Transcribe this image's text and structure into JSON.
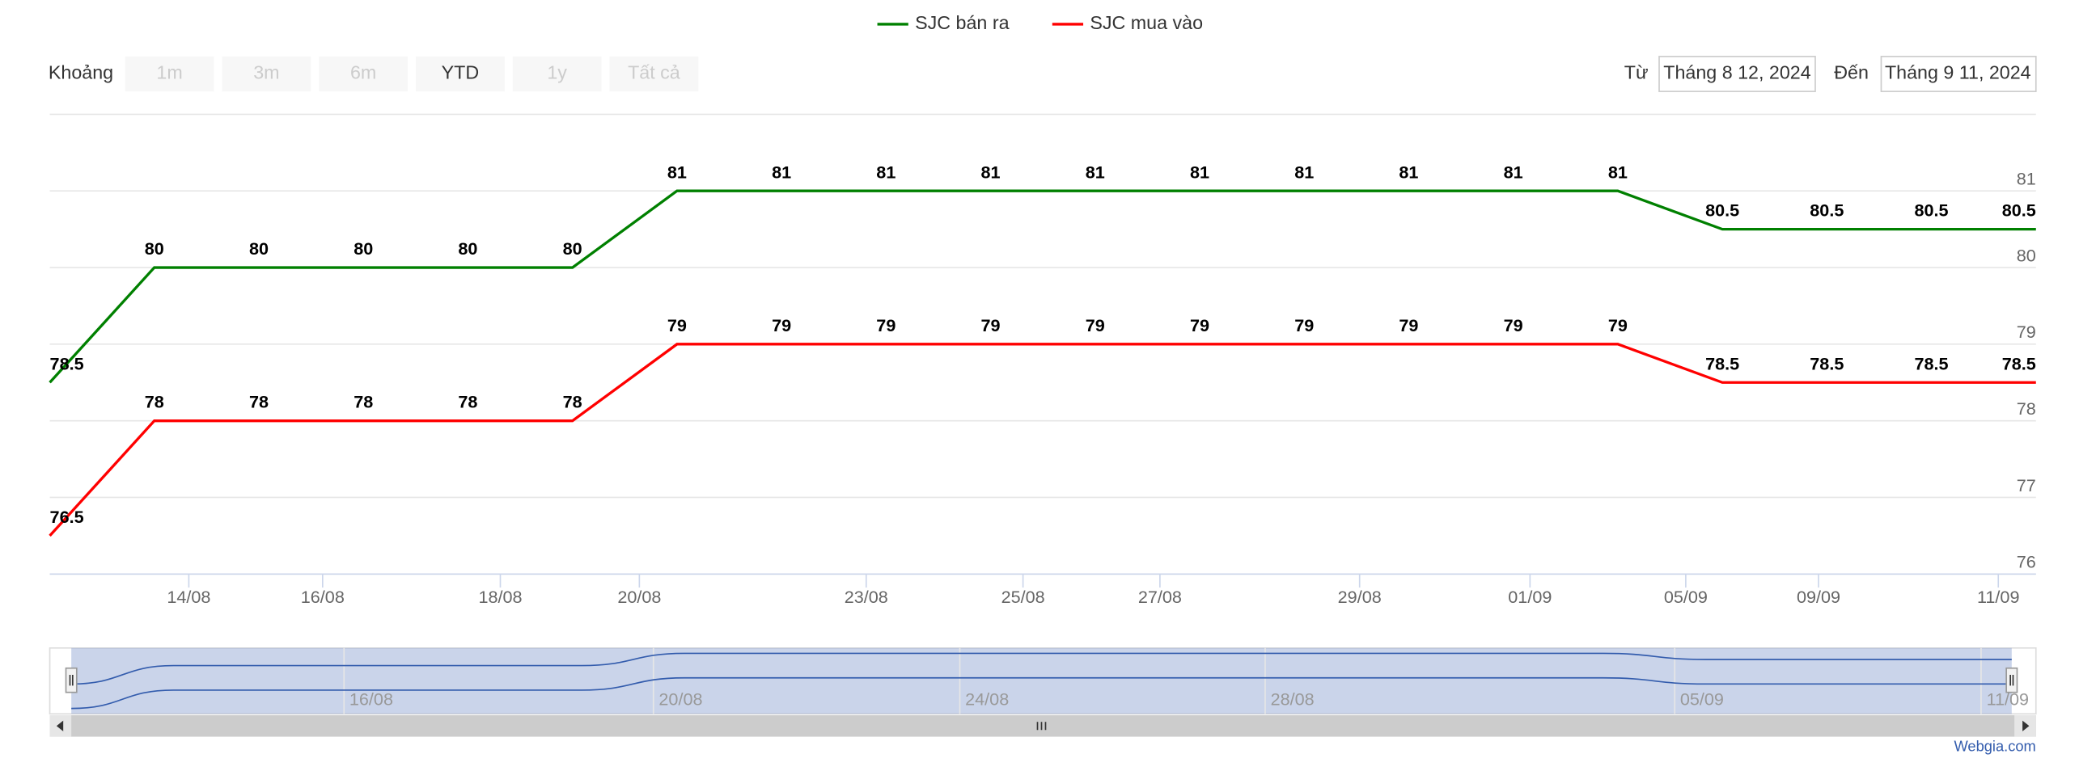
{
  "chart_data": {
    "type": "line",
    "legend_position": "top",
    "categories": [
      null,
      null,
      null,
      null,
      null,
      null,
      null,
      null,
      null,
      null,
      null,
      null,
      null,
      null,
      null,
      null,
      null,
      null,
      null,
      null
    ],
    "series": [
      {
        "name": "SJC bán ra",
        "color": "#008000",
        "values": [
          78.5,
          80,
          80,
          80,
          80,
          80,
          81,
          81,
          81,
          81,
          81,
          81,
          81,
          81,
          81,
          81,
          80.5,
          80.5,
          80.5,
          80.5
        ]
      },
      {
        "name": "SJC mua vào",
        "color": "#ff0000",
        "values": [
          76.5,
          78,
          78,
          78,
          78,
          78,
          79,
          79,
          79,
          79,
          79,
          79,
          79,
          79,
          79,
          79,
          78.5,
          78.5,
          78.5,
          78.5
        ]
      }
    ],
    "xlim": [
      0,
      19
    ],
    "xticks": [
      {
        "value": 1.33,
        "label": "14/08"
      },
      {
        "value": 2.61,
        "label": "16/08"
      },
      {
        "value": 4.31,
        "label": "18/08"
      },
      {
        "value": 5.64,
        "label": "20/08"
      },
      {
        "value": 7.81,
        "label": "23/08"
      },
      {
        "value": 9.31,
        "label": "25/08"
      },
      {
        "value": 10.62,
        "label": "27/08"
      },
      {
        "value": 12.53,
        "label": "29/08"
      },
      {
        "value": 14.16,
        "label": "01/09"
      },
      {
        "value": 15.65,
        "label": "05/09"
      },
      {
        "value": 16.92,
        "label": "09/09"
      },
      {
        "value": 18.64,
        "label": "11/09"
      }
    ],
    "ylim": [
      76,
      82
    ],
    "yticks": [
      76,
      77,
      78,
      79,
      80,
      81
    ],
    "grid": true,
    "navigator_xticks": [
      {
        "value": 2.67,
        "label": "16/08"
      },
      {
        "value": 5.7,
        "label": "20/08"
      },
      {
        "value": 8.7,
        "label": "24/08"
      },
      {
        "value": 11.69,
        "label": "28/08"
      },
      {
        "value": 15.7,
        "label": "05/09"
      },
      {
        "value": 18.7,
        "label": "11/09"
      }
    ]
  },
  "range_selector": {
    "label": "Khoảng",
    "buttons": [
      "1m",
      "3m",
      "6m",
      "YTD",
      "1y",
      "Tất cả"
    ],
    "selected": 3,
    "from_label": "Từ",
    "from": "Tháng 8 12, 2024",
    "to_label": "Đến",
    "to": "Tháng 9 11, 2024"
  },
  "credit": "Webgia.com"
}
